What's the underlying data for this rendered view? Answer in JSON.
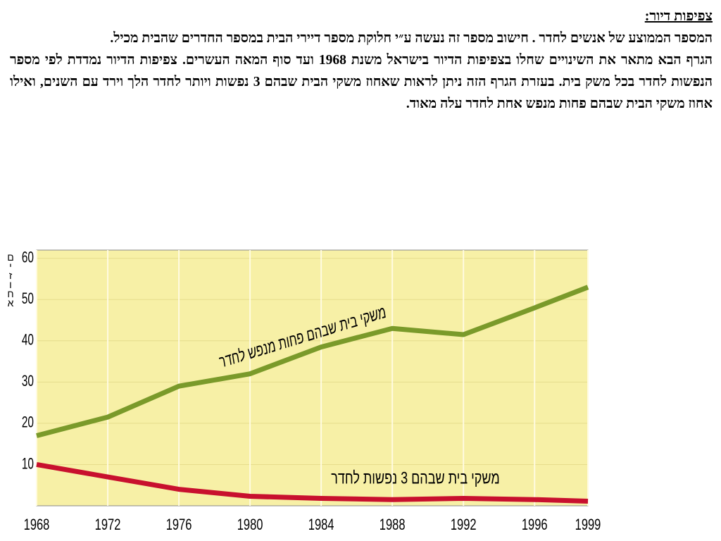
{
  "header": {
    "title": "צפיפות דיור:",
    "paragraphs": [
      "המספר הממוצע של אנשים לחדר . חישוב מספר זה נעשה ע״י חלוקת מספר דיירי הבית במספר החדרים שהבית מכיל.",
      "הגרף  הבא מתאר את השינויים שחלו בצפיפות הדיור בישראל משנת 1968 ועד סוף המאה העשרים. צפיפות הדיור נמדדת לפי מספר הנפשות לחדר בכל משק בית. בעזרת הגרף הזה ניתן לראות שאחוז משקי הבית שבהם 3 נפשות ויותר לחדר הלך וירד עם השנים, ואילו אחוז משקי הבית שבהם פחות מנפש אחת לחדר עלה מאוד."
    ]
  },
  "chart_data": {
    "type": "line",
    "y_label": "אחוזים",
    "x": [
      1968,
      1972,
      1976,
      1980,
      1984,
      1988,
      1992,
      1996,
      1999
    ],
    "series": [
      {
        "name": "משקי בית שבהם פחות מנפש לחדר",
        "color": "#7a9a2a",
        "values": [
          17,
          21.5,
          29,
          32,
          38.5,
          43,
          41.5,
          48,
          53
        ]
      },
      {
        "name": "משקי בית  שבהם  3 נפשות לחדר",
        "color": "#c8102e",
        "values": [
          10,
          7,
          4,
          2.3,
          1.8,
          1.5,
          1.8,
          1.5,
          1.1
        ]
      }
    ],
    "xlim": [
      1968,
      1999
    ],
    "xticks": [
      1968,
      1972,
      1976,
      1980,
      1984,
      1988,
      1992,
      1996,
      1999
    ],
    "ylim": [
      0,
      62
    ],
    "yticks": [
      10,
      20,
      30,
      40,
      50,
      60
    ],
    "grid": true,
    "background": "#f7f0a6"
  }
}
